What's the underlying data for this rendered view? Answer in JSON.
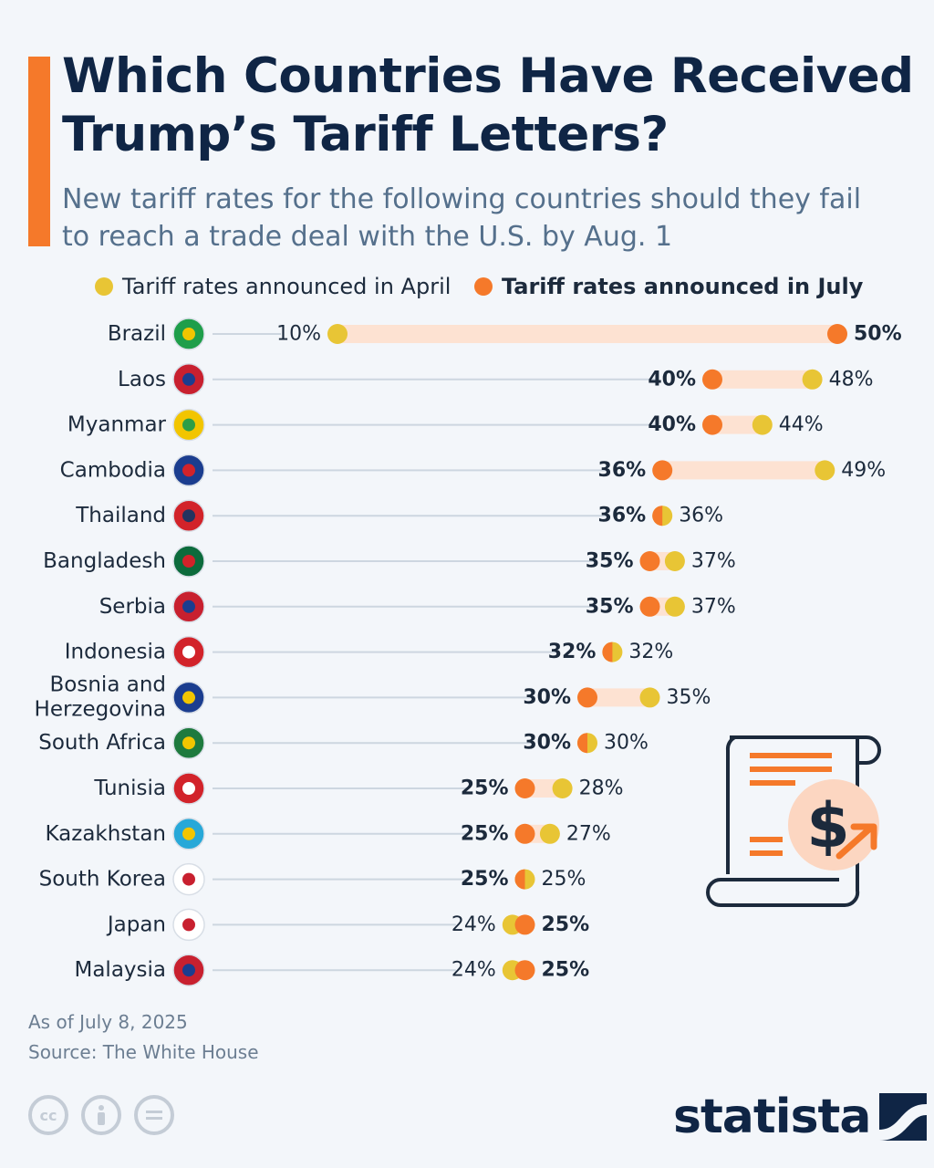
{
  "header": {
    "title": "Which Countries Have Received Trump’s Tariff Letters?",
    "subtitle": "New tariff rates for the following countries should they fail to reach a trade deal with the U.S. by Aug. 1"
  },
  "legend": {
    "april_label": "Tariff rates announced in April",
    "july_label": "Tariff rates announced in July"
  },
  "colors": {
    "april": "#e8c535",
    "july": "#f5792a",
    "range": "#fde2d2",
    "accent": "#f5792a",
    "text_dark": "#0f2545"
  },
  "chart_data": {
    "type": "dumbbell",
    "title": "Which Countries Have Received Trump’s Tariff Letters?",
    "unit": "%",
    "series": [
      {
        "name": "Tariff rates announced in April"
      },
      {
        "name": "Tariff rates announced in July"
      }
    ],
    "x_range": [
      0,
      50
    ],
    "rows": [
      {
        "country": "Brazil",
        "april": 10,
        "july": 50
      },
      {
        "country": "Laos",
        "april": 48,
        "july": 40
      },
      {
        "country": "Myanmar",
        "april": 44,
        "july": 40
      },
      {
        "country": "Cambodia",
        "april": 49,
        "july": 36
      },
      {
        "country": "Thailand",
        "april": 36,
        "july": 36
      },
      {
        "country": "Bangladesh",
        "april": 37,
        "july": 35
      },
      {
        "country": "Serbia",
        "april": 37,
        "july": 35
      },
      {
        "country": "Indonesia",
        "april": 32,
        "july": 32
      },
      {
        "country": "Bosnia and Herzegovina",
        "label_lines": [
          "Bosnia and",
          "Herzegovina"
        ],
        "april": 35,
        "july": 30
      },
      {
        "country": "South Africa",
        "april": 30,
        "july": 30
      },
      {
        "country": "Tunisia",
        "april": 28,
        "july": 25
      },
      {
        "country": "Kazakhstan",
        "april": 27,
        "july": 25
      },
      {
        "country": "South Korea",
        "april": 25,
        "july": 25
      },
      {
        "country": "Japan",
        "april": 24,
        "july": 25
      },
      {
        "country": "Malaysia",
        "april": 24,
        "july": 25
      }
    ]
  },
  "footer": {
    "as_of": "As of July 8, 2025",
    "source": "Source: The White House",
    "brand": "statista",
    "license_icons": [
      "cc-icon",
      "attribution-icon",
      "no-derivatives-icon"
    ]
  }
}
